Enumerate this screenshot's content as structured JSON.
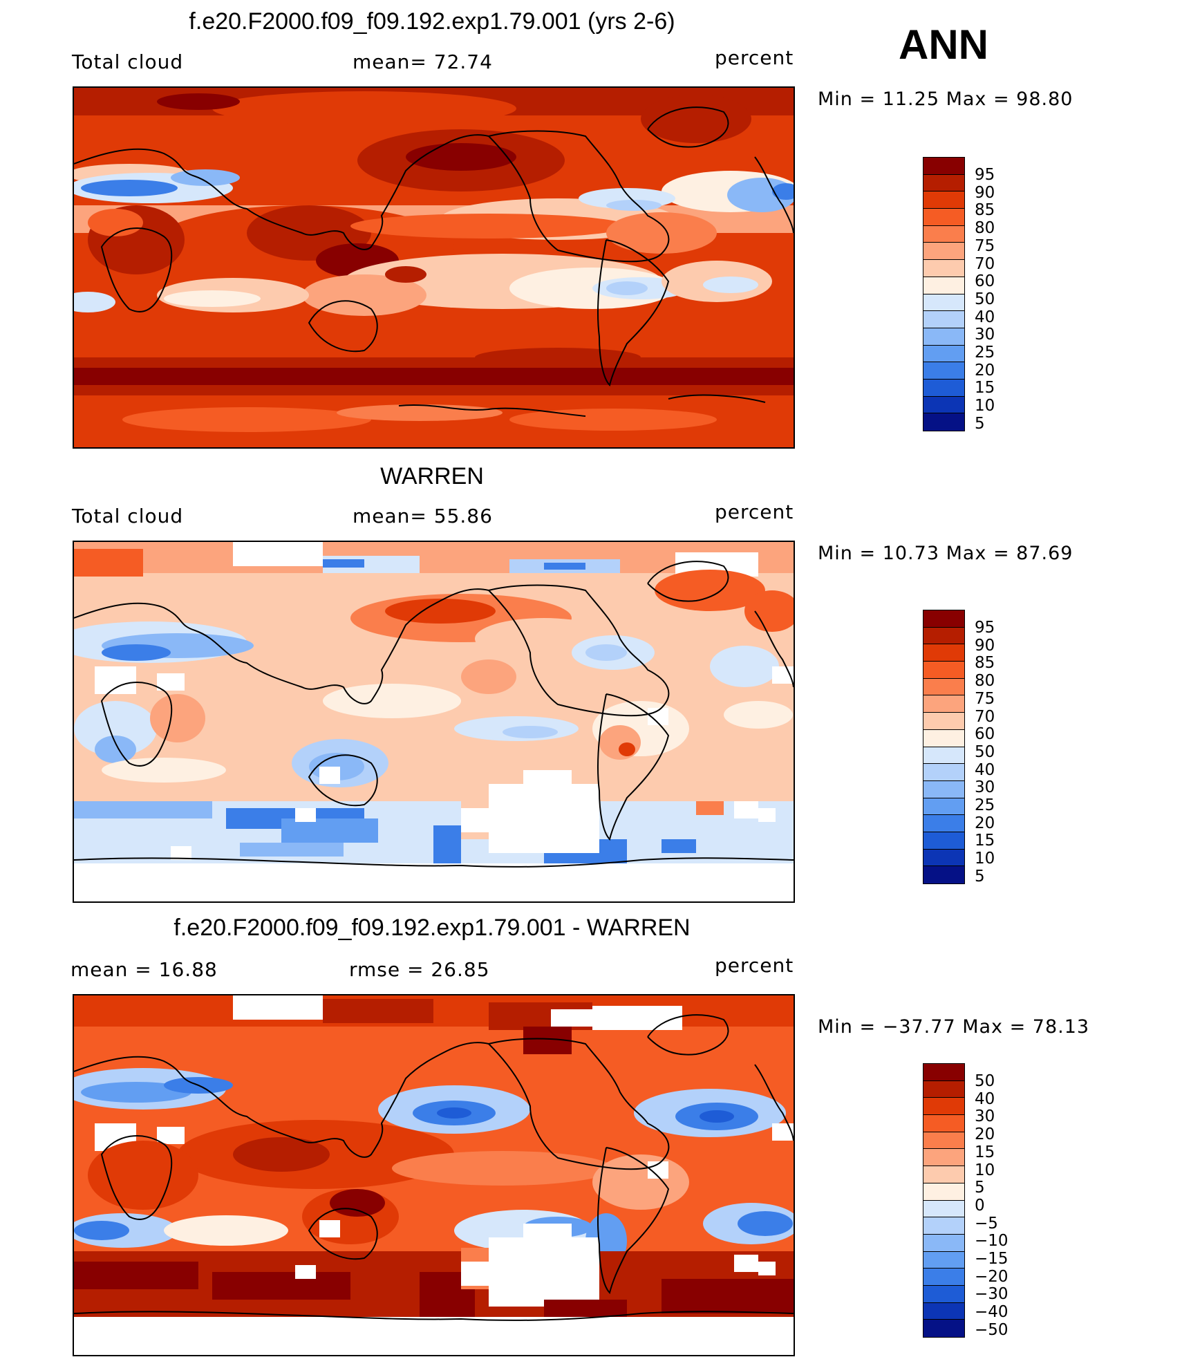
{
  "page_title": "ANN",
  "colors": {
    "abs_scale": [
      "#880000",
      "#b51e00",
      "#e03a06",
      "#f55c24",
      "#fa7e4c",
      "#fca47d",
      "#fdcbae",
      "#fef0e2",
      "#d6e7fb",
      "#b3d1fa",
      "#8ab8f7",
      "#629ef2",
      "#3b7ee8",
      "#1e5cd6",
      "#0c35b5",
      "#051186"
    ],
    "diff_scale": [
      "#880000",
      "#b51e00",
      "#e03a06",
      "#f55c24",
      "#fa7e4c",
      "#fca47d",
      "#fdcbae",
      "#fef0e2",
      "#d6e7fb",
      "#b3d1fa",
      "#8ab8f7",
      "#629ef2",
      "#3b7ee8",
      "#1e5cd6",
      "#0c35b5",
      "#051186"
    ]
  },
  "panels": [
    {
      "title": "f.e20.F2000.f09_f09.192.exp1.79.001 (yrs 2-6)",
      "left_label": "Total cloud",
      "center_label": "mean=  72.74",
      "units": "percent",
      "minmax": "Min =  11.25 Max =  98.80",
      "colorbar_labels": [
        "95",
        "90",
        "85",
        "80",
        "75",
        "70",
        "60",
        "50",
        "40",
        "30",
        "25",
        "20",
        "15",
        "10",
        "5"
      ]
    },
    {
      "title": "WARREN",
      "left_label": "Total cloud",
      "center_label": "mean=  55.86",
      "units": "percent",
      "minmax": "Min =  10.73 Max =  87.69",
      "colorbar_labels": [
        "95",
        "90",
        "85",
        "80",
        "75",
        "70",
        "60",
        "50",
        "40",
        "30",
        "25",
        "20",
        "15",
        "10",
        "5"
      ]
    },
    {
      "title": "f.e20.F2000.f09_f09.192.exp1.79.001 - WARREN",
      "left_label": "mean =  16.88",
      "center_label": "rmse =  26.85",
      "units": "percent",
      "minmax": "Min = −37.77 Max =  78.13",
      "colorbar_labels": [
        "50",
        "40",
        "30",
        "20",
        "15",
        "10",
        "5",
        "0",
        "−5",
        "−10",
        "−15",
        "−20",
        "−30",
        "−40",
        "−50"
      ]
    }
  ]
}
